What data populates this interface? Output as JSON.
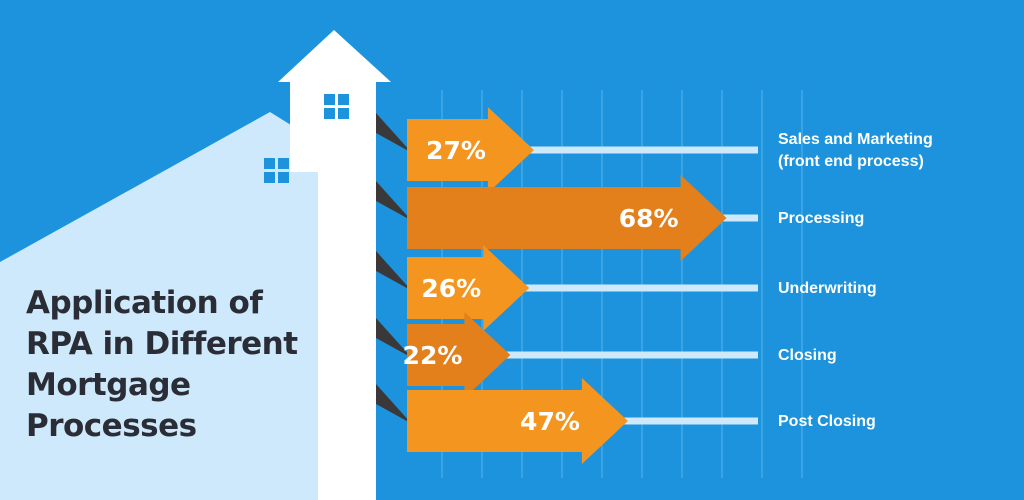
{
  "title_lines": [
    "Application of",
    "RPA in Different",
    "Mortgage",
    "Processes"
  ],
  "colors": {
    "background": "#1c93dc",
    "grid": "#4eaee9",
    "track": "#cde9fb",
    "arrow_light": "#f3951f",
    "arrow_dark": "#e3801c",
    "shadow": "#3a3838",
    "house_back": "#cde9fb",
    "house_front": "#ffffff",
    "window": "#1c93dc"
  },
  "chart_data": {
    "type": "bar",
    "orientation": "horizontal",
    "categories": [
      "Sales and Marketing (front end process)",
      "Processing",
      "Underwriting",
      "Closing",
      "Post Closing"
    ],
    "category_lines": [
      [
        "Sales and Marketing",
        "(front end process)"
      ],
      [
        "Processing"
      ],
      [
        "Underwriting"
      ],
      [
        "Closing"
      ],
      [
        "Post Closing"
      ]
    ],
    "values": [
      27,
      68,
      26,
      22,
      47
    ],
    "value_labels": [
      "27%",
      "68%",
      "26%",
      "22%",
      "47%"
    ],
    "unit": "%",
    "xlim": [
      0,
      100
    ],
    "grid": true
  }
}
